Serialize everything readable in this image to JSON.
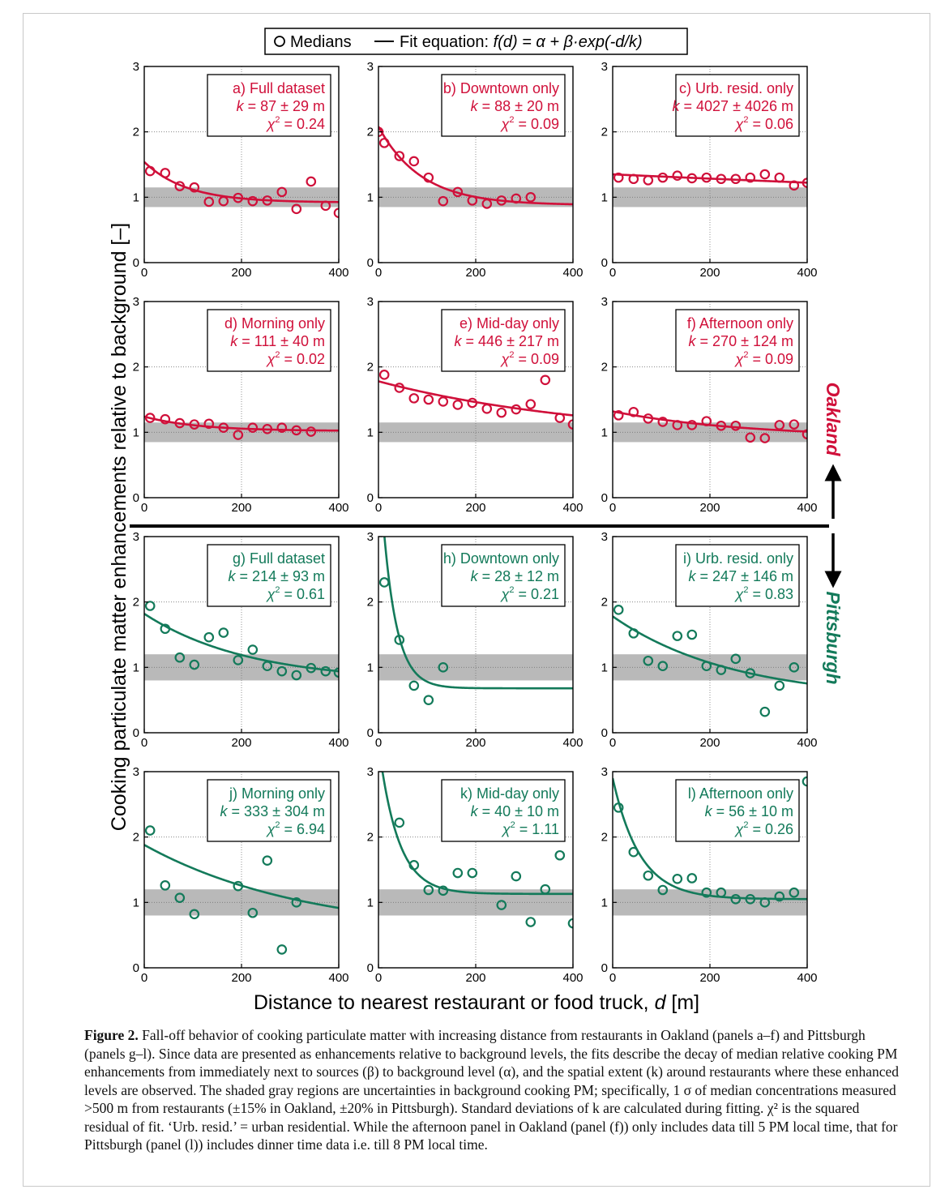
{
  "legend": {
    "medians_label": "Medians",
    "fit_prefix": "Fit equation: ",
    "fit_equation": "f(d) = α + β·exp(-d/k)"
  },
  "axes": {
    "ylabel": "Cooking particulate matter enhancements relative to background [–]",
    "xlabel_prefix": "Distance to nearest restaurant or food truck, ",
    "xlabel_var": "d",
    "xlabel_unit": " [m]",
    "xlim": [
      0,
      400
    ],
    "ylim": [
      0,
      3
    ],
    "xticks": [
      "0",
      "200",
      "400"
    ],
    "yticks": [
      "0",
      "1",
      "2",
      "3"
    ]
  },
  "regions": {
    "oakland": "Oakland",
    "pittsburgh": "Pittsburgh"
  },
  "colors": {
    "oakland": "#d0103a",
    "pittsburgh": "#137a5a",
    "band": "#b9b9b9"
  },
  "caption": {
    "label": "Figure 2.",
    "text": " Fall-off behavior of cooking particulate matter with increasing distance from restaurants in Oakland (panels a–f) and Pittsburgh (panels g–l). Since data are presented as enhancements relative to background levels, the fits describe the decay of median relative cooking PM enhancements from immediately next to sources (β) to background level (α), and the spatial extent (k) around restaurants where these enhanced levels are observed. The shaded gray regions are uncertainties in background cooking PM; specifically, 1 σ of median concentrations measured >500 m from restaurants (±15% in Oakland, ±20% in Pittsburgh). Standard deviations of k are calculated during fitting. χ² is the squared residual of fit. ‘Urb. resid.’ = urban residential. While the afternoon panel in Oakland (panel (f)) only includes data till 5 PM local time, that for Pittsburgh (panel (l)) includes dinner time data i.e. till 8 PM local time."
  },
  "chart_data": [
    {
      "type": "scatter",
      "panel": "a",
      "region": "oakland",
      "title": "a) Full dataset",
      "k_text": "k = 87 ± 29 m",
      "chi2": "0.24",
      "band": [
        0.85,
        1.15
      ],
      "fit": {
        "alpha": 0.92,
        "beta": 0.62,
        "k": 87
      },
      "x": [
        12,
        43,
        73,
        103,
        133,
        163,
        193,
        223,
        253,
        283,
        313,
        343,
        373,
        400
      ],
      "y": [
        1.4,
        1.37,
        1.17,
        1.15,
        0.93,
        0.94,
        0.99,
        0.94,
        0.95,
        1.08,
        0.82,
        1.24,
        0.87,
        0.76
      ]
    },
    {
      "type": "scatter",
      "panel": "b",
      "region": "oakland",
      "title": "b) Downtown only",
      "k_text": "k = 88 ± 20 m",
      "chi2": "0.09",
      "band": [
        0.85,
        1.15
      ],
      "fit": {
        "alpha": 0.88,
        "beta": 1.2,
        "k": 88
      },
      "x": [
        0,
        12,
        43,
        73,
        103,
        133,
        163,
        193,
        223,
        253,
        283,
        313
      ],
      "y": [
        2.0,
        1.83,
        1.63,
        1.55,
        1.3,
        0.94,
        1.08,
        0.95,
        0.9,
        0.95,
        0.98,
        1.0
      ]
    },
    {
      "type": "scatter",
      "panel": "c",
      "region": "oakland",
      "title": "c) Urb. resid. only",
      "k_text": "k = 4027 ± 4026 m",
      "chi2": "0.06",
      "band": [
        0.85,
        1.15
      ],
      "fit": {
        "alpha": 0.0,
        "beta": 1.35,
        "k": 4027
      },
      "x": [
        12,
        43,
        73,
        103,
        133,
        163,
        193,
        223,
        253,
        283,
        313,
        343,
        373,
        400
      ],
      "y": [
        1.3,
        1.28,
        1.26,
        1.3,
        1.33,
        1.29,
        1.3,
        1.28,
        1.28,
        1.3,
        1.35,
        1.3,
        1.18,
        1.22
      ]
    },
    {
      "type": "scatter",
      "panel": "d",
      "region": "oakland",
      "title": "d) Morning only",
      "k_text": "k = 111 ± 40 m",
      "chi2": "0.02",
      "band": [
        0.85,
        1.15
      ],
      "fit": {
        "alpha": 1.02,
        "beta": 0.22,
        "k": 111
      },
      "x": [
        12,
        43,
        73,
        103,
        133,
        163,
        193,
        223,
        253,
        283,
        313,
        343
      ],
      "y": [
        1.22,
        1.2,
        1.14,
        1.12,
        1.13,
        1.07,
        0.96,
        1.07,
        1.05,
        1.07,
        1.03,
        1.01
      ]
    },
    {
      "type": "scatter",
      "panel": "e",
      "region": "oakland",
      "title": "e) Mid-day only",
      "k_text": "k = 446 ± 217 m",
      "chi2": "0.09",
      "band": [
        0.85,
        1.15
      ],
      "fit": {
        "alpha": 0.9,
        "beta": 0.88,
        "k": 446
      },
      "x": [
        12,
        43,
        73,
        103,
        133,
        163,
        193,
        223,
        253,
        283,
        313,
        343,
        373,
        400
      ],
      "y": [
        1.88,
        1.68,
        1.52,
        1.5,
        1.47,
        1.42,
        1.45,
        1.36,
        1.3,
        1.35,
        1.43,
        1.8,
        1.22,
        1.12
      ]
    },
    {
      "type": "scatter",
      "panel": "f",
      "region": "oakland",
      "title": "f) Afternoon only",
      "k_text": "k = 270 ± 124 m",
      "chi2": "0.09",
      "band": [
        0.85,
        1.15
      ],
      "fit": {
        "alpha": 0.92,
        "beta": 0.4,
        "k": 270
      },
      "x": [
        12,
        43,
        73,
        103,
        133,
        163,
        193,
        223,
        253,
        283,
        313,
        343,
        373,
        400
      ],
      "y": [
        1.26,
        1.31,
        1.21,
        1.16,
        1.11,
        1.11,
        1.17,
        1.1,
        1.1,
        0.92,
        0.91,
        1.11,
        1.12,
        0.97
      ]
    },
    {
      "type": "scatter",
      "panel": "g",
      "region": "pittsburgh",
      "title": "g) Full dataset",
      "k_text": "k = 214 ± 93 m",
      "chi2": "0.61",
      "band": [
        0.8,
        1.2
      ],
      "fit": {
        "alpha": 0.78,
        "beta": 1.04,
        "k": 214
      },
      "x": [
        12,
        43,
        73,
        103,
        133,
        163,
        193,
        223,
        253,
        283,
        313,
        343,
        373,
        400
      ],
      "y": [
        1.94,
        1.59,
        1.15,
        1.04,
        1.46,
        1.53,
        1.11,
        1.27,
        1.02,
        0.94,
        0.88,
        0.99,
        0.94,
        0.92
      ]
    },
    {
      "type": "scatter",
      "panel": "h",
      "region": "pittsburgh",
      "title": "h) Downtown only",
      "k_text": "k = 28 ± 12 m",
      "chi2": "0.21",
      "band": [
        0.8,
        1.2
      ],
      "fit": {
        "alpha": 0.68,
        "beta": 3.6,
        "k": 28
      },
      "x": [
        12,
        43,
        73,
        103,
        133
      ],
      "y": [
        2.3,
        1.42,
        0.72,
        0.5,
        1.0
      ]
    },
    {
      "type": "scatter",
      "panel": "i",
      "region": "pittsburgh",
      "title": "i) Urb. resid. only",
      "k_text": "k = 247 ± 146 m",
      "chi2": "0.83",
      "band": [
        0.8,
        1.2
      ],
      "fit": {
        "alpha": 0.5,
        "beta": 1.28,
        "k": 247
      },
      "x": [
        12,
        43,
        73,
        103,
        133,
        163,
        193,
        223,
        253,
        283,
        313,
        343,
        373
      ],
      "y": [
        1.88,
        1.52,
        1.1,
        1.02,
        1.48,
        1.5,
        1.02,
        0.96,
        1.13,
        0.91,
        0.32,
        0.72,
        1.0
      ]
    },
    {
      "type": "scatter",
      "panel": "j",
      "region": "pittsburgh",
      "title": "j) Morning only",
      "k_text": "k = 333 ± 304 m",
      "chi2": "6.94",
      "band": [
        0.8,
        1.2
      ],
      "fit": {
        "alpha": 0.5,
        "beta": 1.38,
        "k": 333
      },
      "x": [
        12,
        43,
        73,
        103,
        193,
        223,
        253,
        283,
        313
      ],
      "y": [
        2.1,
        1.26,
        1.07,
        0.82,
        1.25,
        0.84,
        1.64,
        0.28,
        1.0
      ]
    },
    {
      "type": "scatter",
      "panel": "k",
      "region": "pittsburgh",
      "title": "k) Mid-day only",
      "k_text": "k = 40 ± 10 m",
      "chi2": "1.11",
      "band": [
        0.8,
        1.2
      ],
      "fit": {
        "alpha": 1.13,
        "beta": 2.3,
        "k": 40
      },
      "x": [
        43,
        73,
        103,
        133,
        163,
        193,
        253,
        283,
        313,
        343,
        373,
        400
      ],
      "y": [
        2.22,
        1.57,
        1.19,
        1.18,
        1.45,
        1.45,
        0.96,
        1.4,
        0.7,
        1.2,
        1.72,
        0.68
      ]
    },
    {
      "type": "scatter",
      "panel": "l",
      "region": "pittsburgh",
      "title": "l) Afternoon only",
      "k_text": "k = 56 ± 10 m",
      "chi2": "0.26",
      "band": [
        0.8,
        1.2
      ],
      "fit": {
        "alpha": 1.05,
        "beta": 1.85,
        "k": 56
      },
      "x": [
        12,
        43,
        73,
        103,
        133,
        163,
        193,
        223,
        253,
        283,
        313,
        343,
        373,
        400
      ],
      "y": [
        2.45,
        1.77,
        1.41,
        1.19,
        1.36,
        1.37,
        1.15,
        1.15,
        1.05,
        1.05,
        1.0,
        1.09,
        1.15,
        2.85
      ]
    }
  ]
}
